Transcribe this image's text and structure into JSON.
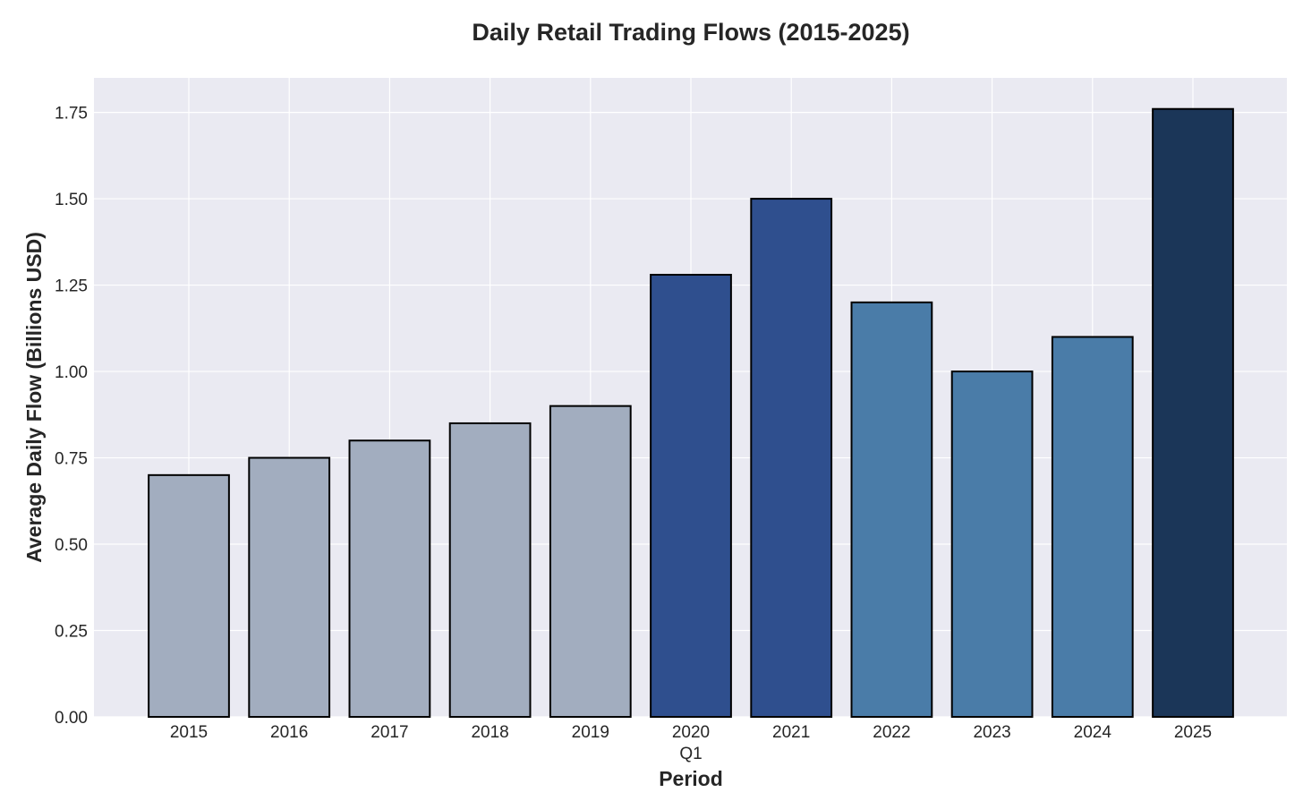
{
  "chart_data": {
    "type": "bar",
    "title": "Daily Retail Trading Flows (2015-2025)",
    "xlabel": "Period",
    "ylabel": "Average Daily Flow (Billions USD)",
    "categories": [
      "2015",
      "2016",
      "2017",
      "2018",
      "2019",
      "2020\nQ1",
      "2021",
      "2022",
      "2023",
      "2024",
      "2025"
    ],
    "values": [
      0.7,
      0.75,
      0.8,
      0.85,
      0.9,
      1.28,
      1.5,
      1.2,
      1.0,
      1.1,
      1.76
    ],
    "bar_colors": [
      "#a2adbf",
      "#a2adbf",
      "#a2adbf",
      "#a2adbf",
      "#a2adbf",
      "#2f4f8e",
      "#2f4f8e",
      "#4a7ca8",
      "#4a7ca8",
      "#4a7ca8",
      "#1b3658"
    ],
    "ylim": [
      0,
      1.85
    ],
    "yticks": [
      0.0,
      0.25,
      0.5,
      0.75,
      1.0,
      1.25,
      1.5,
      1.75
    ],
    "grid": true,
    "legend": "none",
    "colors": {
      "plot_background": "#eaeaf2",
      "grid": "#ffffff",
      "bar_edge": "#000000",
      "text": "#262626"
    }
  }
}
